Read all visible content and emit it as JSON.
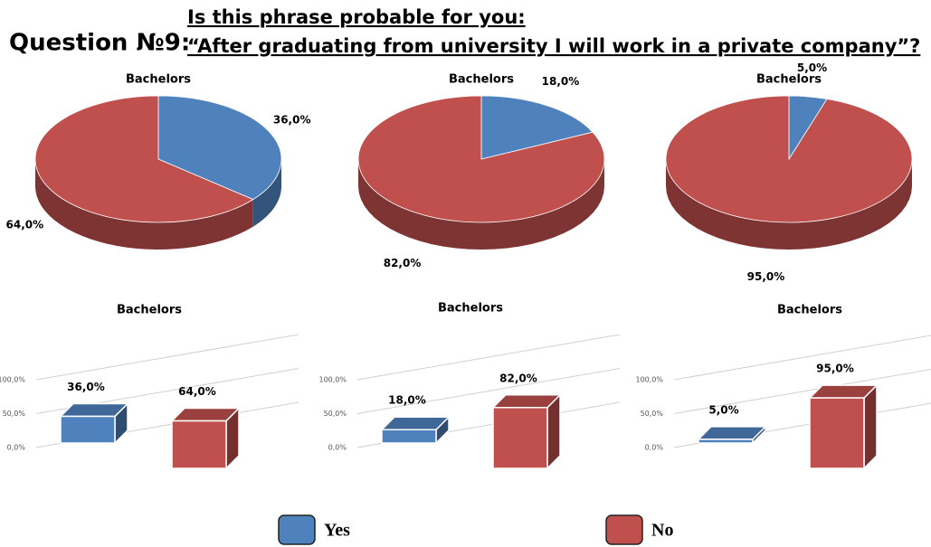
{
  "title": "Question №9:",
  "question": [
    "Is this phrase probable for you:",
    "“After graduating from university I will work in a private company”?"
  ],
  "legend": [
    {
      "name": "Yes",
      "color": "#4f81bd"
    },
    {
      "name": "No",
      "color": "#c0504d"
    }
  ],
  "chart_data": [
    {
      "type": "pie",
      "title": "Bachelors",
      "values": [
        36,
        64
      ],
      "value_labels": [
        "36,0%",
        "64,0%"
      ],
      "colors": [
        "#4f81bd",
        "#c0504d"
      ]
    },
    {
      "type": "pie",
      "title": "Bachelors",
      "values": [
        18,
        82
      ],
      "value_labels": [
        "18,0%",
        "82,0%"
      ],
      "colors": [
        "#4f81bd",
        "#c0504d"
      ]
    },
    {
      "type": "pie",
      "title": "Bachelors",
      "values": [
        5,
        95
      ],
      "value_labels": [
        "5,0%",
        "95,0%"
      ],
      "colors": [
        "#4f81bd",
        "#c0504d"
      ]
    },
    {
      "type": "bar",
      "title": "Bachelors",
      "values": [
        36,
        64
      ],
      "value_labels": [
        "36,0%",
        "64,0%"
      ],
      "colors": [
        "#4f81bd",
        "#c0504d"
      ],
      "ylim": [
        0,
        100
      ],
      "yticks": [
        {
          "value": 0,
          "label": "0,0%"
        },
        {
          "value": 50,
          "label": "50,0%"
        },
        {
          "value": 100,
          "label": "100,0%"
        }
      ]
    },
    {
      "type": "bar",
      "title": "Bachelors",
      "values": [
        18,
        82
      ],
      "value_labels": [
        "18,0%",
        "82,0%"
      ],
      "colors": [
        "#4f81bd",
        "#c0504d"
      ],
      "ylim": [
        0,
        100
      ],
      "yticks": [
        {
          "value": 0,
          "label": "0,0%"
        },
        {
          "value": 50,
          "label": "50,0%"
        },
        {
          "value": 100,
          "label": "100,0%"
        }
      ]
    },
    {
      "type": "bar",
      "title": "Bachelors",
      "values": [
        5,
        95
      ],
      "value_labels": [
        "5,0%",
        "95,0%"
      ],
      "colors": [
        "#4f81bd",
        "#c0504d"
      ],
      "ylim": [
        0,
        100
      ],
      "yticks": [
        {
          "value": 0,
          "label": "0,0%"
        },
        {
          "value": 50,
          "label": "50,0%"
        },
        {
          "value": 100,
          "label": "100,0%"
        }
      ]
    }
  ]
}
